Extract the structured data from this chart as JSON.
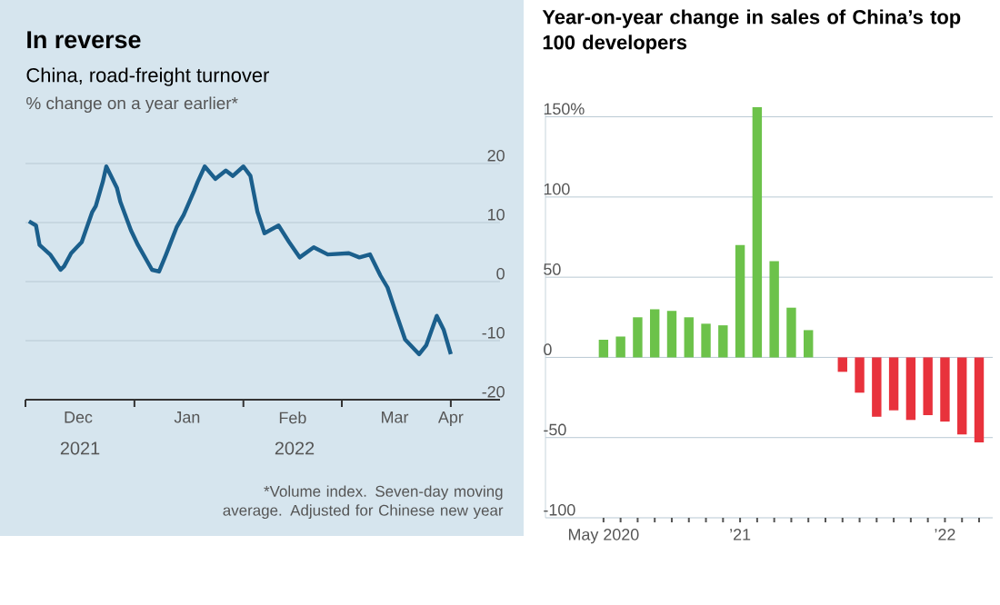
{
  "chart_data": [
    {
      "type": "line",
      "title": "In reverse",
      "subtitle": "China, road-freight turnover",
      "ylabel": "% change on a year earlier*",
      "x": [
        "2021-12-02",
        "2021-12-04",
        "2021-12-05",
        "2021-12-08",
        "2021-12-11",
        "2021-12-12",
        "2021-12-14",
        "2021-12-17",
        "2021-12-20",
        "2021-12-21",
        "2021-12-23",
        "2021-12-24",
        "2021-12-27",
        "2021-12-28",
        "2021-12-31",
        "2022-01-02",
        "2022-01-06",
        "2022-01-08",
        "2022-01-10",
        "2022-01-13",
        "2022-01-15",
        "2022-01-18",
        "2022-01-19",
        "2022-01-21",
        "2022-01-24",
        "2022-01-27",
        "2022-01-29",
        "2022-02-01",
        "2022-02-03",
        "2022-02-05",
        "2022-02-07",
        "2022-02-11",
        "2022-02-14",
        "2022-02-17",
        "2022-02-21",
        "2022-02-25",
        "2022-03-03",
        "2022-03-06",
        "2022-03-09",
        "2022-03-12",
        "2022-03-14",
        "2022-03-16",
        "2022-03-19",
        "2022-03-23",
        "2022-03-25",
        "2022-03-28",
        "2022-03-30",
        "2022-04-01"
      ],
      "values": [
        10.2,
        9.5,
        6.2,
        4.6,
        2.0,
        2.6,
        4.8,
        6.7,
        11.8,
        12.8,
        16.9,
        19.5,
        15.9,
        13.5,
        8.7,
        6.2,
        2.0,
        1.7,
        4.6,
        9.2,
        11.3,
        15.4,
        16.9,
        19.5,
        17.4,
        18.8,
        17.9,
        19.5,
        17.9,
        11.8,
        8.2,
        9.5,
        6.7,
        4.1,
        5.8,
        4.6,
        4.8,
        4.1,
        4.6,
        1.0,
        -1.0,
        -4.6,
        -9.8,
        -12.3,
        -10.8,
        -5.8,
        -8.2,
        -12.3
      ],
      "color": "#1b5f8c",
      "xlim": [
        "2021-12-01",
        "2022-04-15"
      ],
      "ylim": [
        -20,
        20
      ],
      "xticks": [
        {
          "value": "2021-12-01",
          "label": null
        },
        {
          "value": "2021-12-16",
          "label": "Dec"
        },
        {
          "value": "2022-01-01",
          "label": null
        },
        {
          "value": "2022-01-16",
          "label": "Jan"
        },
        {
          "value": "2022-02-01",
          "label": null
        },
        {
          "value": "2022-02-15",
          "label": "Feb"
        },
        {
          "value": "2022-03-01",
          "label": null
        },
        {
          "value": "2022-03-16",
          "label": "Mar"
        },
        {
          "value": "2022-04-01",
          "label": null
        },
        {
          "value": "2022-04-01",
          "label": "Apr"
        }
      ],
      "yticks": [
        -20,
        -10,
        0,
        10,
        20
      ],
      "grid": "y",
      "annotations": [
        "2021",
        "2022",
        "*Volume index. Seven-day moving average. Adjusted for Chinese new year"
      ]
    },
    {
      "type": "bar",
      "title": "Year-on-year change in sales of China’s top 100 developers",
      "categories": [
        "May 2020",
        null,
        null,
        null,
        null,
        null,
        null,
        null,
        "’21",
        null,
        null,
        null,
        null,
        null,
        null,
        null,
        null,
        null,
        null,
        null,
        "’22",
        null,
        null
      ],
      "values": [
        11,
        13,
        25,
        30,
        29,
        25,
        21,
        20,
        70,
        156,
        60,
        31,
        17,
        null,
        -9,
        -22,
        -37,
        -33,
        -39,
        -36,
        -40,
        -48,
        -53
      ],
      "colors": [
        "#6cc24a",
        "#6cc24a",
        "#6cc24a",
        "#6cc24a",
        "#6cc24a",
        "#6cc24a",
        "#6cc24a",
        "#6cc24a",
        "#6cc24a",
        "#6cc24a",
        "#6cc24a",
        "#6cc24a",
        "#6cc24a",
        "#6cc24a",
        "#e8323c",
        "#e8323c",
        "#e8323c",
        "#e8323c",
        "#e8323c",
        "#e8323c",
        "#e8323c",
        "#e8323c",
        "#e8323c"
      ],
      "ylim": [
        -100,
        156
      ],
      "yticks": [
        -100,
        -50,
        0,
        50,
        100,
        {
          "value": 150,
          "label": "150%"
        }
      ],
      "grid": "y"
    }
  ]
}
